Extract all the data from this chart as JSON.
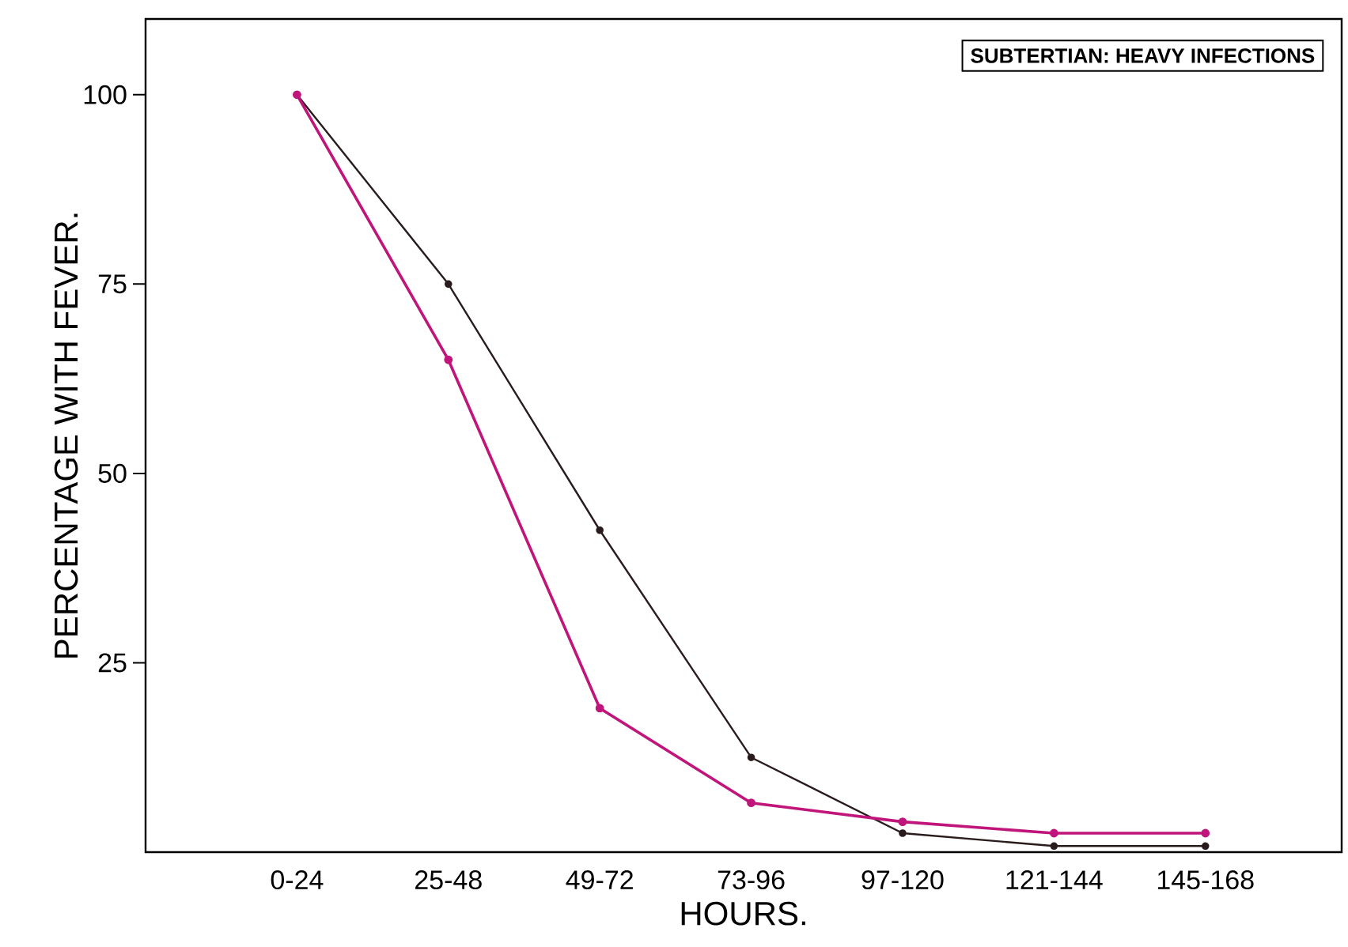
{
  "chart_data": {
    "type": "line",
    "xlabel": "HOURS.",
    "ylabel": "PERCENTAGE WITH FEVER.",
    "categories": [
      "0-24",
      "25-48",
      "49-72",
      "73-96",
      "97-120",
      "121-144",
      "145-168"
    ],
    "series": [
      {
        "color": "#2a1c1c",
        "values": [
          100,
          75,
          42.5,
          12.5,
          2.5,
          0.8,
          0.8
        ]
      },
      {
        "color": "#c0157a",
        "values": [
          100,
          65,
          19,
          6.5,
          4,
          2.5,
          2.5
        ]
      }
    ],
    "ylim": [
      0,
      110
    ],
    "yticks": [
      25,
      50,
      75,
      100
    ],
    "marker": "circle",
    "line_style": "solid",
    "annotations": [
      "SUBTERTIAN: HEAVY INFECTIONS"
    ]
  }
}
